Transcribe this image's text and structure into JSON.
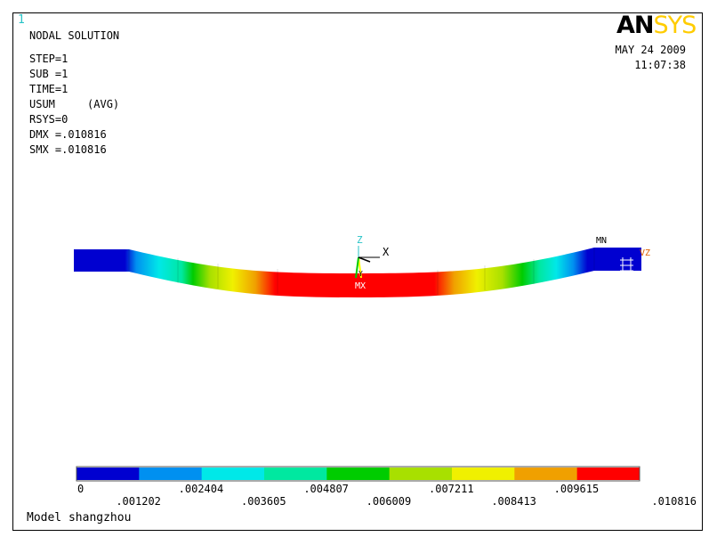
{
  "window_number": "1",
  "solution_title": "NODAL SOLUTION",
  "info_lines": [
    "STEP=1",
    "SUB =1",
    "TIME=1",
    "USUM     (AVG)",
    "RSYS=0",
    "DMX =.010816",
    "SMX =.010816"
  ],
  "date": "MAY 24 2009",
  "time": "11:07:38",
  "logo": {
    "part1": "AN",
    "part2": "SYS"
  },
  "triad": {
    "z_label": "Z",
    "x_label": "X",
    "y_label": "Y"
  },
  "markers": {
    "mn": "MN",
    "mx": "MX",
    "vz": "VZ"
  },
  "legend": {
    "colors": [
      "#0000d0",
      "#0090f0",
      "#00e8e8",
      "#00e8a0",
      "#00cc00",
      "#a8e000",
      "#f0f000",
      "#f0a000",
      "#ff0000"
    ],
    "labels_top": [
      "0",
      ".002404",
      ".004807",
      ".007211",
      ".009615"
    ],
    "labels_bottom": [
      ".001202",
      ".003605",
      ".006009",
      ".008413",
      ".010816"
    ]
  },
  "model_title": "Model shangzhou",
  "icons": [
    "coordinate-triad-icon",
    "boundary-constraint-icon"
  ]
}
